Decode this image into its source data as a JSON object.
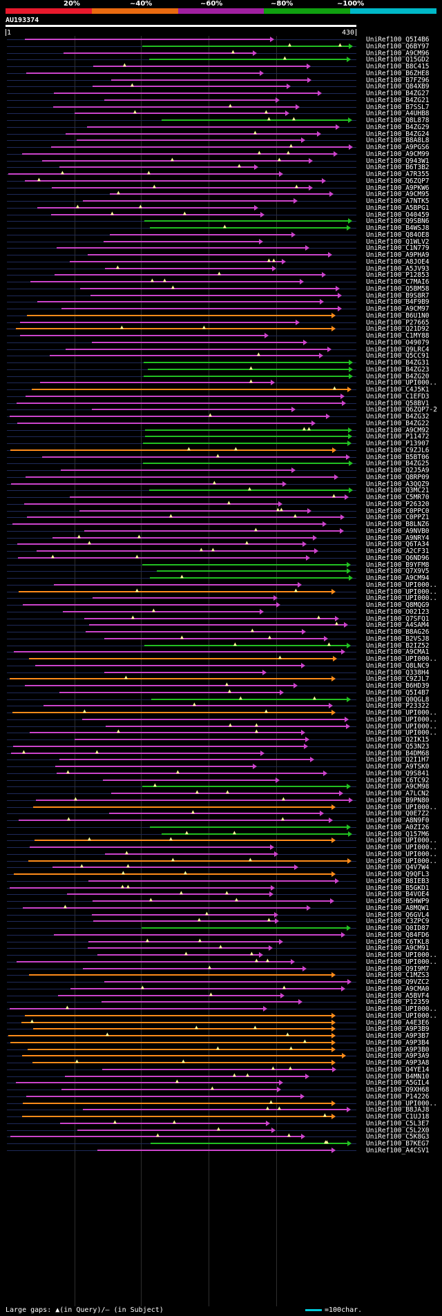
{
  "scale": {
    "labels": [
      "20%",
      "~40%",
      "~60%",
      "~80%",
      "~100%"
    ],
    "colors": [
      "#e8192c",
      "#e86a10",
      "#a020a0",
      "#10a010",
      "#00b8c8"
    ]
  },
  "query": {
    "id": "AU193374",
    "start": "1",
    "end": "430"
  },
  "colors": {
    "orange": "#ff8c1a",
    "purple": "#cc44cc",
    "green": "#22c022"
  },
  "hits": [
    {
      "label": "UniRef100_Q5I4B6",
      "c": "purple"
    },
    {
      "label": "UniRef100_Q6BY97",
      "c": "green"
    },
    {
      "label": "UniRef100_A9CM96",
      "c": "purple"
    },
    {
      "label": "UniRef100_Q15GD2",
      "c": "green"
    },
    {
      "label": "UniRef100_B8C415",
      "c": "purple"
    },
    {
      "label": "UniRef100_B6ZHE8",
      "c": "purple"
    },
    {
      "label": "UniRef100_B7FZ96",
      "c": "purple"
    },
    {
      "label": "UniRef100_Q84XB9",
      "c": "purple"
    },
    {
      "label": "UniRef100_B4ZG27",
      "c": "purple"
    },
    {
      "label": "UniRef100_B4ZG21",
      "c": "purple"
    },
    {
      "label": "UniRef100_B7SSL7",
      "c": "purple"
    },
    {
      "label": "UniRef100_A4UHB8",
      "c": "purple"
    },
    {
      "label": "UniRef100_Q8L878",
      "c": "green"
    },
    {
      "label": "UniRef100_B4ZG29",
      "c": "purple"
    },
    {
      "label": "UniRef100_B4ZG24",
      "c": "purple"
    },
    {
      "label": "UniRef100_B8A8L8",
      "c": "purple"
    },
    {
      "label": "UniRef100_A9PGS6",
      "c": "purple"
    },
    {
      "label": "UniRef100_A9CM99",
      "c": "purple"
    },
    {
      "label": "UniRef100_Q943W1",
      "c": "purple"
    },
    {
      "label": "UniRef100_B6T3B2",
      "c": "purple"
    },
    {
      "label": "UniRef100_A7R355",
      "c": "purple"
    },
    {
      "label": "UniRef100_Q6ZQP7",
      "c": "purple"
    },
    {
      "label": "UniRef100_A9PKW6",
      "c": "purple"
    },
    {
      "label": "UniRef100_A9CM95",
      "c": "purple"
    },
    {
      "label": "UniRef100_A7NTK5",
      "c": "purple"
    },
    {
      "label": "UniRef100_A5BPG1",
      "c": "purple"
    },
    {
      "label": "UniRef100_O40459",
      "c": "purple"
    },
    {
      "label": "UniRef100_Q9SBN6",
      "c": "green"
    },
    {
      "label": "UniRef100_B4WSJ8",
      "c": "green"
    },
    {
      "label": "UniRef100_Q84OE8",
      "c": "purple"
    },
    {
      "label": "UniRef100_Q1WLV2",
      "c": "purple"
    },
    {
      "label": "UniRef100_C1N779",
      "c": "purple"
    },
    {
      "label": "UniRef100_A9PHA9",
      "c": "purple"
    },
    {
      "label": "UniRef100_A8JOE4",
      "c": "purple"
    },
    {
      "label": "UniRef100_A5JV93",
      "c": "purple"
    },
    {
      "label": "UniRef100_P12853",
      "c": "purple"
    },
    {
      "label": "UniRef100_C7MAI6",
      "c": "purple"
    },
    {
      "label": "UniRef100_Q5BM58",
      "c": "purple"
    },
    {
      "label": "UniRef100_B9S8R7",
      "c": "purple"
    },
    {
      "label": "UniRef100_B4F9B9",
      "c": "purple"
    },
    {
      "label": "UniRef100_A9CM97",
      "c": "purple"
    },
    {
      "label": "UniRef100_B6U1N0",
      "c": "orange"
    },
    {
      "label": "UniRef100_P27665",
      "c": "purple"
    },
    {
      "label": "UniRef100_Q21D92",
      "c": "orange"
    },
    {
      "label": "UniRef100_C1MY88",
      "c": "purple"
    },
    {
      "label": "UniRef100_O49079",
      "c": "purple"
    },
    {
      "label": "UniRef100_Q9LRC4",
      "c": "purple"
    },
    {
      "label": "UniRef100_Q5CC91",
      "c": "purple"
    },
    {
      "label": "UniRef100_B4ZG31",
      "c": "green"
    },
    {
      "label": "UniRef100_B4ZG23",
      "c": "green"
    },
    {
      "label": "UniRef100_B4ZG20",
      "c": "green"
    },
    {
      "label": "UniRef100_UPI000..",
      "c": "purple"
    },
    {
      "label": "UniRef100_C4J5K1",
      "c": "orange"
    },
    {
      "label": "UniRef100_C1EFD3",
      "c": "purple"
    },
    {
      "label": "UniRef100_Q58BV1",
      "c": "purple"
    },
    {
      "label": "UniRef100_Q6ZQP7-2",
      "c": "purple"
    },
    {
      "label": "UniRef100_B4ZG32",
      "c": "purple"
    },
    {
      "label": "UniRef100_B4ZG22",
      "c": "purple"
    },
    {
      "label": "UniRef100_A9CM92",
      "c": "green"
    },
    {
      "label": "UniRef100_P11472",
      "c": "green"
    },
    {
      "label": "UniRef100_P13907",
      "c": "green"
    },
    {
      "label": "UniRef100_C9ZJL6",
      "c": "orange"
    },
    {
      "label": "UniRef100_B5BT06",
      "c": "purple"
    },
    {
      "label": "UniRef100_B4ZG25",
      "c": "green"
    },
    {
      "label": "UniRef100_Q2J5A9",
      "c": "purple"
    },
    {
      "label": "UniRef100_Q8RP09",
      "c": "purple"
    },
    {
      "label": "UniRef100_A3QQZ9",
      "c": "purple"
    },
    {
      "label": "UniRef100_Q3MC21",
      "c": "green"
    },
    {
      "label": "UniRef100_C5MR70",
      "c": "purple"
    },
    {
      "label": "UniRef100_P26320",
      "c": "purple"
    },
    {
      "label": "UniRef100_C0PPC0",
      "c": "purple"
    },
    {
      "label": "UniRef100_C0PPZ1",
      "c": "purple"
    },
    {
      "label": "UniRef100_B8LNZ6",
      "c": "purple"
    },
    {
      "label": "UniRef100_A9NVB0",
      "c": "purple"
    },
    {
      "label": "UniRef100_A9NRY4",
      "c": "purple"
    },
    {
      "label": "UniRef100_Q6TA34",
      "c": "purple"
    },
    {
      "label": "UniRef100_A2CF31",
      "c": "purple"
    },
    {
      "label": "UniRef100_Q6ND96",
      "c": "purple"
    },
    {
      "label": "UniRef100_B9YFM8",
      "c": "green"
    },
    {
      "label": "UniRef100_Q7X9V5",
      "c": "green"
    },
    {
      "label": "UniRef100_A9CM94",
      "c": "green"
    },
    {
      "label": "UniRef100_UPI000..",
      "c": "purple"
    },
    {
      "label": "UniRef100_UPI000..",
      "c": "orange"
    },
    {
      "label": "UniRef100_UPI000..",
      "c": "purple"
    },
    {
      "label": "UniRef100_Q8MQG9",
      "c": "purple"
    },
    {
      "label": "UniRef100_O02123",
      "c": "purple"
    },
    {
      "label": "UniRef100_Q7SFQ1",
      "c": "purple"
    },
    {
      "label": "UniRef100_A4SAM4",
      "c": "purple"
    },
    {
      "label": "UniRef100_B8AG26",
      "c": "purple"
    },
    {
      "label": "UniRef100_B2VSJ8",
      "c": "purple"
    },
    {
      "label": "UniRef100_B2IZ52",
      "c": "green"
    },
    {
      "label": "UniRef100_A9CMA1",
      "c": "purple"
    },
    {
      "label": "UniRef100_UPI000..",
      "c": "orange"
    },
    {
      "label": "UniRef100_Q8LNC9",
      "c": "purple"
    },
    {
      "label": "UniRef100_Q338H4",
      "c": "purple"
    },
    {
      "label": "UniRef100_C9ZJL7",
      "c": "orange"
    },
    {
      "label": "UniRef100_B6HD39",
      "c": "purple"
    },
    {
      "label": "UniRef100_Q5I4B7",
      "c": "purple"
    },
    {
      "label": "UniRef100_Q0QGL8",
      "c": "green"
    },
    {
      "label": "UniRef100_P23322",
      "c": "purple"
    },
    {
      "label": "UniRef100_UPI000..",
      "c": "orange"
    },
    {
      "label": "UniRef100_UPI000..",
      "c": "purple"
    },
    {
      "label": "UniRef100_UPI000..",
      "c": "purple"
    },
    {
      "label": "UniRef100_UPI000..",
      "c": "purple"
    },
    {
      "label": "UniRef100_Q2IK15",
      "c": "purple"
    },
    {
      "label": "UniRef100_Q53N23",
      "c": "purple"
    },
    {
      "label": "UniRef100_B4DM68",
      "c": "purple"
    },
    {
      "label": "UniRef100_Q2I1H7",
      "c": "purple"
    },
    {
      "label": "UniRef100_A9TSK0",
      "c": "purple"
    },
    {
      "label": "UniRef100_Q9S841",
      "c": "purple"
    },
    {
      "label": "UniRef100_C6TC92",
      "c": "purple"
    },
    {
      "label": "UniRef100_A9CM98",
      "c": "green"
    },
    {
      "label": "UniRef100_A7LCN2",
      "c": "purple"
    },
    {
      "label": "UniRef100_B9PN80",
      "c": "purple"
    },
    {
      "label": "UniRef100_UPI000..",
      "c": "orange"
    },
    {
      "label": "UniRef100_Q0E7Z2",
      "c": "purple"
    },
    {
      "label": "UniRef100_A8N9F0",
      "c": "purple"
    },
    {
      "label": "UniRef100_A0ZI26",
      "c": "green"
    },
    {
      "label": "UniRef100_Q157M6",
      "c": "green"
    },
    {
      "label": "UniRef100_UPI000..",
      "c": "orange"
    },
    {
      "label": "UniRef100_UPI000..",
      "c": "purple"
    },
    {
      "label": "UniRef100_UPI000..",
      "c": "purple"
    },
    {
      "label": "UniRef100_UPI000..",
      "c": "orange"
    },
    {
      "label": "UniRef100_Q4V7W4",
      "c": "purple"
    },
    {
      "label": "UniRef100_Q9QFL3",
      "c": "orange"
    },
    {
      "label": "UniRef100_B8IEB3",
      "c": "purple"
    },
    {
      "label": "UniRef100_B5GKD1",
      "c": "purple"
    },
    {
      "label": "UniRef100_B4VOE4",
      "c": "purple"
    },
    {
      "label": "UniRef100_B5HWP9",
      "c": "purple"
    },
    {
      "label": "UniRef100_A8MQW1",
      "c": "purple"
    },
    {
      "label": "UniRef100_Q6GVL4",
      "c": "purple"
    },
    {
      "label": "UniRef100_C3ZPC9",
      "c": "purple"
    },
    {
      "label": "UniRef100_Q0ID87",
      "c": "green"
    },
    {
      "label": "UniRef100_Q84FD6",
      "c": "purple"
    },
    {
      "label": "UniRef100_C6TKL8",
      "c": "purple"
    },
    {
      "label": "UniRef100_A9CM91",
      "c": "purple"
    },
    {
      "label": "UniRef100_UPI000..",
      "c": "purple"
    },
    {
      "label": "UniRef100_UPI000..",
      "c": "purple"
    },
    {
      "label": "UniRef100_Q9I9M7",
      "c": "purple"
    },
    {
      "label": "UniRef100_C1MZS3",
      "c": "orange"
    },
    {
      "label": "UniRef100_Q9VZC2",
      "c": "purple"
    },
    {
      "label": "UniRef100_A9CMA0",
      "c": "purple"
    },
    {
      "label": "UniRef100_A5BVF4",
      "c": "purple"
    },
    {
      "label": "UniRef100_P12359",
      "c": "purple"
    },
    {
      "label": "UniRef100_UPI000..",
      "c": "purple"
    },
    {
      "label": "UniRef100_UPI000..",
      "c": "orange"
    },
    {
      "label": "UniRef100_A4E3E6",
      "c": "orange"
    },
    {
      "label": "UniRef100_A9P3B9",
      "c": "orange"
    },
    {
      "label": "UniRef100_A9P3B7",
      "c": "orange"
    },
    {
      "label": "UniRef100_A9P3B4",
      "c": "orange"
    },
    {
      "label": "UniRef100_A9P3B0",
      "c": "orange"
    },
    {
      "label": "UniRef100_A9P3A9",
      "c": "orange"
    },
    {
      "label": "UniRef100_A9P3A8",
      "c": "orange"
    },
    {
      "label": "UniRef100_Q4YE14",
      "c": "purple"
    },
    {
      "label": "UniRef100_B4MN10",
      "c": "purple"
    },
    {
      "label": "UniRef100_A5GIL4",
      "c": "purple"
    },
    {
      "label": "UniRef100_Q9XH68",
      "c": "purple"
    },
    {
      "label": "UniRef100_P14226",
      "c": "purple"
    },
    {
      "label": "UniRef100_UPI000..",
      "c": "orange"
    },
    {
      "label": "UniRef100_B8JAJ8",
      "c": "purple"
    },
    {
      "label": "UniRef100_C1UJ18",
      "c": "orange"
    },
    {
      "label": "UniRef100_C5L3E7",
      "c": "purple"
    },
    {
      "label": "UniRef100_C5L2X0",
      "c": "purple"
    },
    {
      "label": "UniRef100_C5K8G3",
      "c": "purple"
    },
    {
      "label": "UniRef100_B7KEG7",
      "c": "green"
    },
    {
      "label": "UniRef100_A4CSV1",
      "c": "purple"
    }
  ],
  "legend": {
    "left": "Large gaps: ▲(in Query)/– (in Subject)",
    "right": "=100char."
  }
}
